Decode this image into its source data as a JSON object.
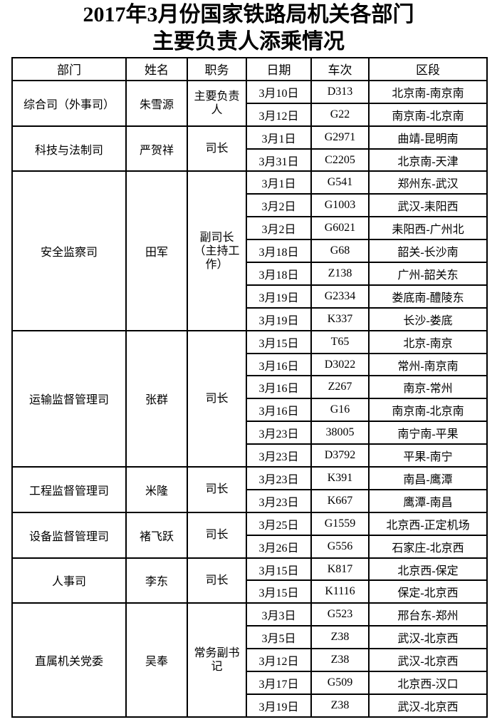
{
  "title": {
    "line1": "2017年3月份国家铁路局机关各部门",
    "line2": "主要负责人添乘情况"
  },
  "colors": {
    "text": "#000000",
    "border": "#000000",
    "background": "#ffffff"
  },
  "table": {
    "headers": [
      "部门",
      "姓名",
      "职务",
      "日期",
      "车次",
      "区段"
    ],
    "sections": [
      {
        "department": "综合司（外事司）",
        "name": "朱雪源",
        "position": "主要负责人",
        "trips": [
          {
            "date": "3月10日",
            "train": "D313",
            "segment": "北京南-南京南"
          },
          {
            "date": "3月12日",
            "train": "G22",
            "segment": "南京南-北京南"
          }
        ]
      },
      {
        "department": "科技与法制司",
        "name": "严贺祥",
        "position": "司长",
        "trips": [
          {
            "date": "3月1日",
            "train": "G2971",
            "segment": "曲靖-昆明南"
          },
          {
            "date": "3月31日",
            "train": "C2205",
            "segment": "北京南-天津"
          }
        ]
      },
      {
        "department": "安全监察司",
        "name": "田军",
        "position": "副司长（主持工作）",
        "trips": [
          {
            "date": "3月1日",
            "train": "G541",
            "segment": "郑州东-武汉"
          },
          {
            "date": "3月2日",
            "train": "G1003",
            "segment": "武汉-耒阳西"
          },
          {
            "date": "3月2日",
            "train": "G6021",
            "segment": "耒阳西-广州北"
          },
          {
            "date": "3月18日",
            "train": "G68",
            "segment": "韶关-长沙南"
          },
          {
            "date": "3月18日",
            "train": "Z138",
            "segment": "广州-韶关东"
          },
          {
            "date": "3月19日",
            "train": "G2334",
            "segment": "娄底南-醴陵东"
          },
          {
            "date": "3月19日",
            "train": "K337",
            "segment": "长沙-娄底"
          }
        ]
      },
      {
        "department": "运输监督管理司",
        "name": "张群",
        "position": "司长",
        "trips": [
          {
            "date": "3月15日",
            "train": "T65",
            "segment": "北京-南京"
          },
          {
            "date": "3月16日",
            "train": "D3022",
            "segment": "常州-南京南"
          },
          {
            "date": "3月16日",
            "train": "Z267",
            "segment": "南京-常州"
          },
          {
            "date": "3月16日",
            "train": "G16",
            "segment": "南京南-北京南"
          },
          {
            "date": "3月23日",
            "train": "38005",
            "segment": "南宁南-平果"
          },
          {
            "date": "3月23日",
            "train": "D3792",
            "segment": "平果-南宁"
          }
        ]
      },
      {
        "department": "工程监督管理司",
        "name": "米隆",
        "position": "司长",
        "trips": [
          {
            "date": "3月23日",
            "train": "K391",
            "segment": "南昌-鹰潭"
          },
          {
            "date": "3月23日",
            "train": "K667",
            "segment": "鹰潭-南昌"
          }
        ]
      },
      {
        "department": "设备监督管理司",
        "name": "褚飞跃",
        "position": "司长",
        "trips": [
          {
            "date": "3月25日",
            "train": "G1559",
            "segment": "北京西-正定机场"
          },
          {
            "date": "3月26日",
            "train": "G556",
            "segment": "石家庄-北京西"
          }
        ]
      },
      {
        "department": "人事司",
        "name": "李东",
        "position": "司长",
        "trips": [
          {
            "date": "3月15日",
            "train": "K817",
            "segment": "北京西-保定"
          },
          {
            "date": "3月15日",
            "train": "K1116",
            "segment": "保定-北京西"
          }
        ]
      },
      {
        "department": "直属机关党委",
        "name": "吴奉",
        "position": "常务副书记",
        "trips": [
          {
            "date": "3月3日",
            "train": "G523",
            "segment": "邢台东-郑州"
          },
          {
            "date": "3月5日",
            "train": "Z38",
            "segment": "武汉-北京西"
          },
          {
            "date": "3月12日",
            "train": "Z38",
            "segment": "武汉-北京西"
          },
          {
            "date": "3月17日",
            "train": "G509",
            "segment": "北京西-汉口"
          },
          {
            "date": "3月19日",
            "train": "Z38",
            "segment": "武汉-北京西"
          }
        ]
      }
    ]
  }
}
